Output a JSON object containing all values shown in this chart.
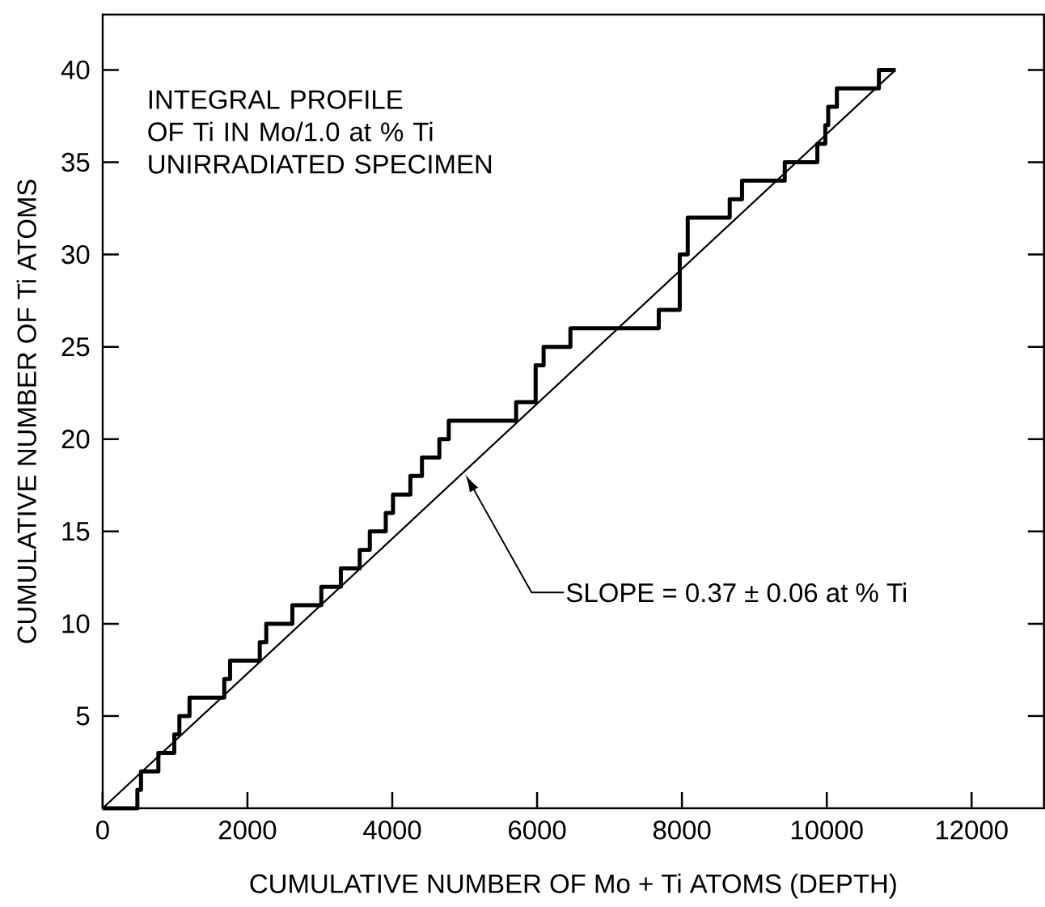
{
  "chart_data": {
    "type": "step",
    "xlabel": "CUMULATIVE NUMBER OF Mo + Ti ATOMS (DEPTH)",
    "ylabel": "CUMULATIVE NUMBER OF Ti ATOMS",
    "title": "INTEGRAL PROFILE OF Ti IN Mo/1.0 at % Ti UNIRRADIATED SPECIMEN",
    "xlim": [
      0,
      13000
    ],
    "ylim": [
      0,
      43
    ],
    "xticks": [
      0,
      2000,
      4000,
      6000,
      8000,
      10000,
      12000
    ],
    "yticks": [
      5,
      10,
      15,
      20,
      25,
      30,
      35,
      40
    ],
    "series": [
      {
        "color": "#000000",
        "x": [
          0,
          480,
          530,
          770,
          990,
          1060,
          1200,
          1680,
          1760,
          2170,
          2260,
          2620,
          3020,
          3290,
          3550,
          3690,
          3910,
          4010,
          4250,
          4410,
          4650,
          4780,
          5710,
          5980,
          6090,
          6460,
          7680,
          7970,
          8080,
          8660,
          8830,
          9420,
          9870,
          9980,
          10020,
          10140,
          10720,
          10950
        ],
        "values": [
          0,
          1,
          2,
          3,
          4,
          5,
          6,
          7,
          8,
          9,
          10,
          11,
          12,
          13,
          14,
          15,
          16,
          17,
          18,
          19,
          20,
          21,
          22,
          24,
          25,
          26,
          27,
          30,
          32,
          33,
          34,
          35,
          36,
          37,
          38,
          39,
          40,
          40
        ]
      },
      {
        "type": "line",
        "color": "#000000",
        "x": [
          0,
          10950
        ],
        "values": [
          0,
          40
        ]
      }
    ],
    "annotations": [
      "SLOPE = 0.37 ± 0.06 at % Ti"
    ]
  }
}
